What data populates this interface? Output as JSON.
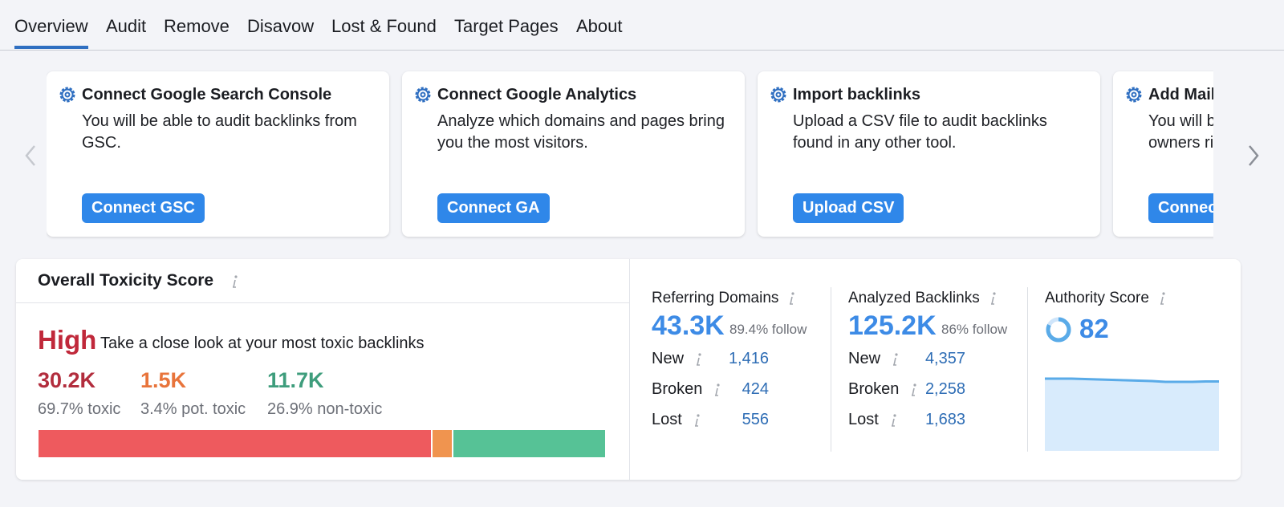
{
  "tabs": [
    "Overview",
    "Audit",
    "Remove",
    "Disavow",
    "Lost & Found",
    "Target Pages",
    "About"
  ],
  "cards": [
    {
      "title": "Connect Google Search Console",
      "text": "You will be able to audit backlinks from GSC.",
      "button": "Connect GSC"
    },
    {
      "title": "Connect Google Analytics",
      "text": "Analyze which domains and pages bring you the most visitors.",
      "button": "Connect GA"
    },
    {
      "title": "Import backlinks",
      "text": "Upload a CSV file to audit backlinks found in any other tool.",
      "button": "Upload CSV"
    },
    {
      "title": "Add Mail",
      "text": "You will b owners ri",
      "button": "Connec"
    }
  ],
  "toxicity": {
    "title": "Overall Toxicity Score",
    "level": "High",
    "description": "Take a close look at your most toxic backlinks",
    "groups": [
      {
        "count": "30.2K",
        "share": {
          "value": 69.7,
          "label": "69.7% toxic"
        },
        "color": "#ee5a5e"
      },
      {
        "count": "1.5K",
        "share": {
          "value": 3.4,
          "label": "3.4% pot. toxic"
        },
        "color": "#f0944f"
      },
      {
        "count": "11.7K",
        "share": {
          "value": 26.9,
          "label": "26.9% non-toxic"
        },
        "color": "#56c296"
      }
    ]
  },
  "metrics": [
    {
      "title": "Referring Domains",
      "total": "43.3K",
      "follow": "89.4% follow",
      "rows": [
        {
          "label": "New",
          "value": "1,416"
        },
        {
          "label": "Broken",
          "value": "424"
        },
        {
          "label": "Lost",
          "value": "556"
        }
      ]
    },
    {
      "title": "Analyzed Backlinks",
      "total": "125.2K",
      "follow": "86% follow",
      "rows": [
        {
          "label": "New",
          "value": "4,357"
        },
        {
          "label": "Broken",
          "value": "2,258"
        },
        {
          "label": "Lost",
          "value": "1,683"
        }
      ]
    }
  ],
  "authority": {
    "title": "Authority Score",
    "score": 82,
    "trend": [
      90,
      90,
      90,
      89.5,
      89,
      88.5,
      88,
      87.5,
      87,
      86,
      86,
      86,
      86.5,
      86.5
    ],
    "trend_ylim": [
      0,
      100
    ]
  }
}
